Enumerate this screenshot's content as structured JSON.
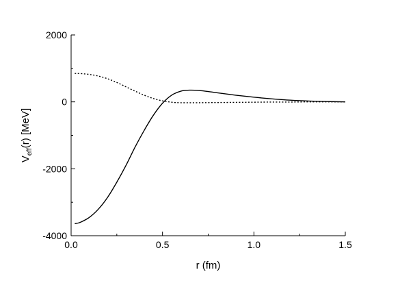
{
  "chart_data": {
    "type": "line",
    "xlabel": "r (fm)",
    "ylabel": {
      "main": "V",
      "sub": "eff",
      "rest": "(r) [MeV]"
    },
    "xlim": [
      0,
      1.5
    ],
    "ylim": [
      -4000,
      2000
    ],
    "x_ticks": [
      {
        "value": 0.0,
        "label": "0.0"
      },
      {
        "value": 0.5,
        "label": "0.5"
      },
      {
        "value": 1.0,
        "label": "1.0"
      },
      {
        "value": 1.5,
        "label": "1.5"
      }
    ],
    "y_ticks": [
      {
        "value": -4000,
        "label": "-4000"
      },
      {
        "value": -2000,
        "label": "-2000"
      },
      {
        "value": 0,
        "label": "0"
      },
      {
        "value": 2000,
        "label": "2000"
      }
    ],
    "grid": false,
    "legend": "none",
    "series": [
      {
        "style": "solid",
        "color": "#000000",
        "x": [
          0.02,
          0.05,
          0.1,
          0.15,
          0.2,
          0.25,
          0.3,
          0.35,
          0.4,
          0.45,
          0.5,
          0.55,
          0.6,
          0.65,
          0.7,
          0.75,
          0.8,
          0.9,
          1.0,
          1.1,
          1.2,
          1.3,
          1.4,
          1.5
        ],
        "y": [
          -3640,
          -3600,
          -3450,
          -3200,
          -2850,
          -2400,
          -1900,
          -1350,
          -850,
          -400,
          -40,
          200,
          320,
          350,
          340,
          310,
          270,
          200,
          140,
          90,
          50,
          25,
          10,
          0
        ]
      },
      {
        "style": "dotted",
        "color": "#000000",
        "x": [
          0.02,
          0.05,
          0.1,
          0.15,
          0.2,
          0.25,
          0.3,
          0.35,
          0.4,
          0.45,
          0.5,
          0.55,
          0.6,
          0.7,
          0.8,
          0.9,
          1.0,
          1.1,
          1.2,
          1.3,
          1.4,
          1.5
        ],
        "y": [
          850,
          845,
          820,
          770,
          690,
          580,
          450,
          320,
          200,
          100,
          30,
          -10,
          -25,
          -25,
          -20,
          -15,
          -10,
          -5,
          -5,
          0,
          0,
          0
        ]
      }
    ]
  }
}
